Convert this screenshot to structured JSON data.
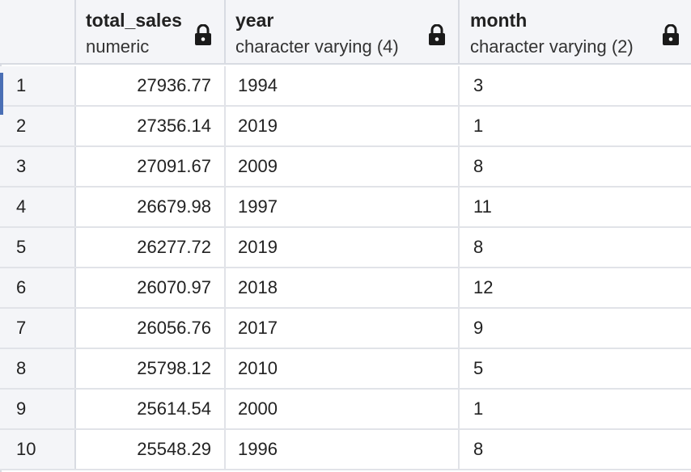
{
  "columns": [
    {
      "name": "total_sales",
      "type": "numeric",
      "icon": "lock-icon"
    },
    {
      "name": "year",
      "type": "character varying (4)",
      "icon": "lock-icon"
    },
    {
      "name": "month",
      "type": "character varying (2)",
      "icon": "lock-icon"
    }
  ],
  "rows": [
    {
      "num": "1",
      "total_sales": "27936.77",
      "year": "1994",
      "month": "3"
    },
    {
      "num": "2",
      "total_sales": "27356.14",
      "year": "2019",
      "month": "1"
    },
    {
      "num": "3",
      "total_sales": "27091.67",
      "year": "2009",
      "month": "8"
    },
    {
      "num": "4",
      "total_sales": "26679.98",
      "year": "1997",
      "month": "11"
    },
    {
      "num": "5",
      "total_sales": "26277.72",
      "year": "2019",
      "month": "8"
    },
    {
      "num": "6",
      "total_sales": "26070.97",
      "year": "2018",
      "month": "12"
    },
    {
      "num": "7",
      "total_sales": "26056.76",
      "year": "2017",
      "month": "9"
    },
    {
      "num": "8",
      "total_sales": "25798.12",
      "year": "2010",
      "month": "5"
    },
    {
      "num": "9",
      "total_sales": "25614.54",
      "year": "2000",
      "month": "1"
    },
    {
      "num": "10",
      "total_sales": "25548.29",
      "year": "1996",
      "month": "8"
    }
  ],
  "colors": {
    "header_bg": "#f4f5f8",
    "grid_line": "#e1e3e8",
    "selected_row_marker": "#4a6fb5"
  }
}
